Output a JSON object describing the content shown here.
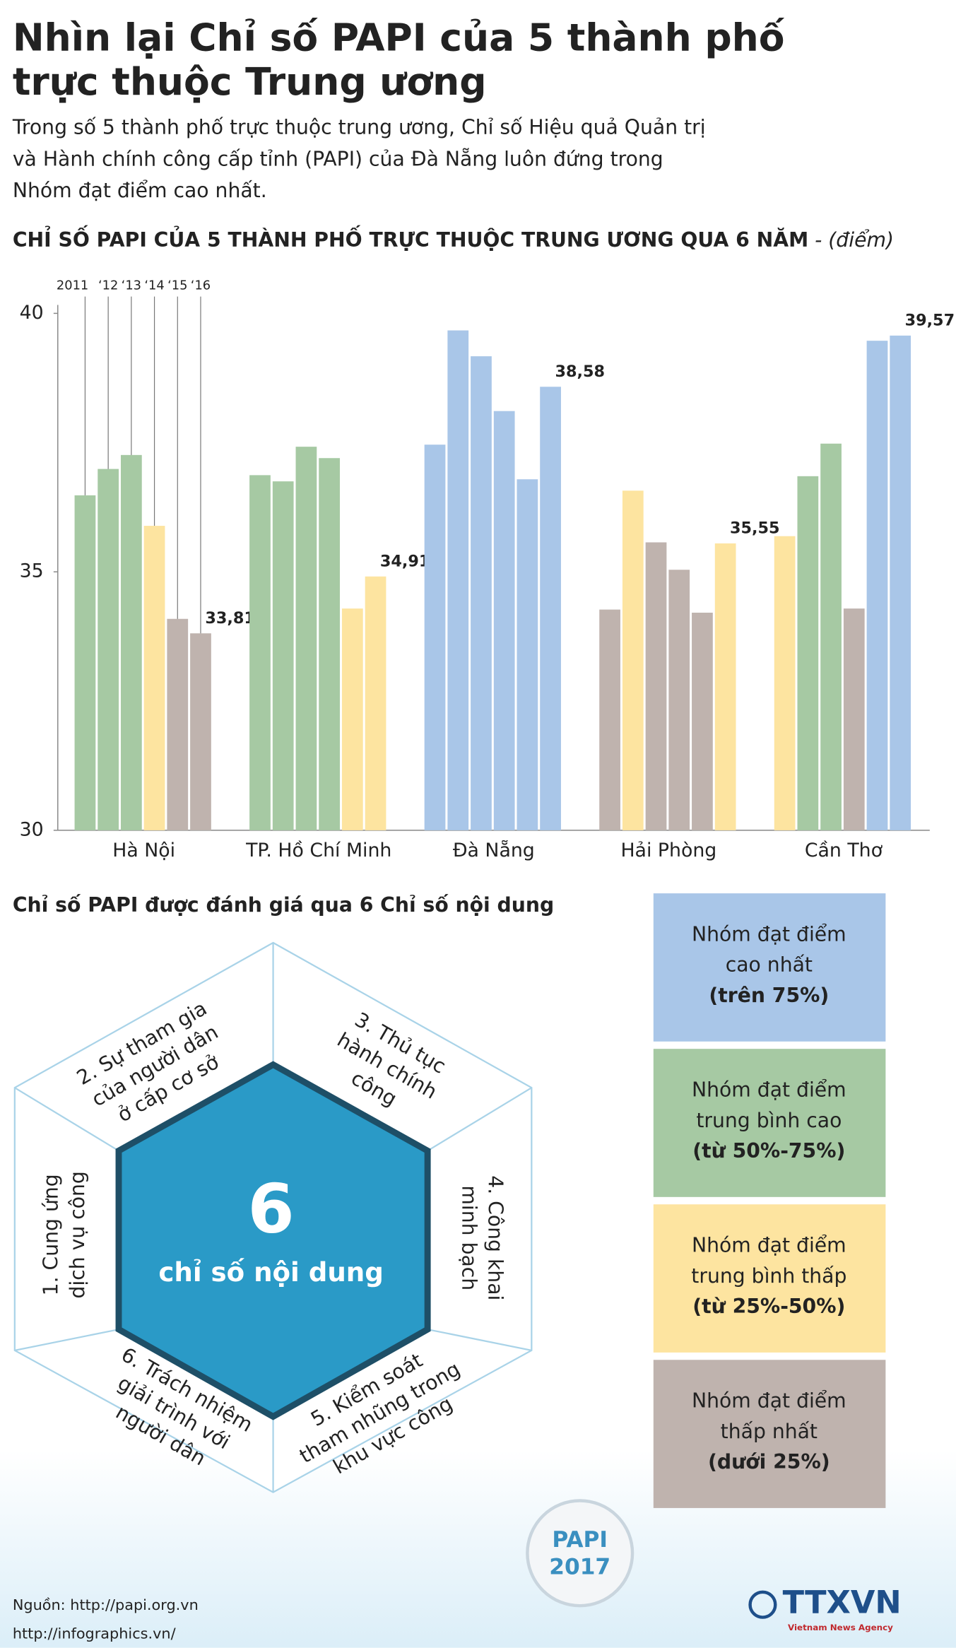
{
  "header": {
    "title": [
      "Nhìn lại Chỉ số PAPI của 5 thành phố",
      "trực thuộc Trung ương"
    ],
    "intro": [
      "Trong số 5 thành phố trực thuộc trung ương, Chỉ số Hiệu quả Quản trị",
      "và Hành chính công cấp tỉnh (PAPI) của Đà Nẵng luôn đứng trong",
      "Nhóm đạt điểm cao nhất."
    ]
  },
  "chart_data": {
    "type": "bar",
    "title": "CHỈ SỐ PAPI CỦA 5 THÀNH PHỐ TRỰC THUỘC TRUNG ƯƠNG QUA 6 NĂM",
    "unit": "- (điểm)",
    "categories": [
      "Hà Nội",
      "TP. Hồ Chí Minh",
      "Đà Nẵng",
      "Hải Phòng",
      "Cần Thơ"
    ],
    "series": [
      {
        "name": "2011",
        "values": [
          36.48,
          36.87,
          37.46,
          34.27,
          35.69
        ],
        "colors": [
          "#a6c9a3",
          "#a6c9a3",
          "#a9c6e8",
          "#bfb3ae",
          "#fde4a0"
        ]
      },
      {
        "name": "‘12",
        "values": [
          36.99,
          36.75,
          39.67,
          36.57,
          36.85
        ],
        "colors": [
          "#a6c9a3",
          "#a6c9a3",
          "#a9c6e8",
          "#fde4a0",
          "#a6c9a3"
        ]
      },
      {
        "name": "‘13",
        "values": [
          37.26,
          37.42,
          39.17,
          35.57,
          37.48
        ],
        "colors": [
          "#a6c9a3",
          "#a6c9a3",
          "#a9c6e8",
          "#bfb3ae",
          "#a6c9a3"
        ]
      },
      {
        "name": "‘14",
        "values": [
          35.89,
          37.2,
          38.11,
          35.04,
          34.29
        ],
        "colors": [
          "#fde4a0",
          "#a6c9a3",
          "#a9c6e8",
          "#bfb3ae",
          "#bfb3ae"
        ]
      },
      {
        "name": "‘15",
        "values": [
          34.09,
          34.29,
          36.79,
          34.21,
          39.47
        ],
        "colors": [
          "#bfb3ae",
          "#fde4a0",
          "#a9c6e8",
          "#bfb3ae",
          "#a9c6e8"
        ]
      },
      {
        "name": "‘16",
        "values": [
          33.81,
          34.91,
          38.58,
          35.55,
          39.57
        ],
        "value_labels": [
          "33,81",
          "34,91",
          "38,58",
          "35,55",
          "39,57"
        ],
        "colors": [
          "#bfb3ae",
          "#fde4a0",
          "#a9c6e8",
          "#fde4a0",
          "#a9c6e8"
        ]
      }
    ],
    "ylim": [
      30,
      40
    ],
    "yticks": [
      30,
      35,
      40
    ]
  },
  "indices": {
    "title": "Chỉ số PAPI được đánh giá qua 6 Chỉ số nội dung",
    "center_number": 6,
    "center_label": "chỉ số nội dung",
    "items": [
      [
        "1. Cung ứng",
        "dịch vụ công"
      ],
      [
        "2. Sự tham gia",
        "của người dân",
        "ở cấp cơ sở"
      ],
      [
        "3. Thủ tục",
        "hành chính",
        "công"
      ],
      [
        "4. Công khai",
        "minh bạch"
      ],
      [
        "5. Kiểm soát",
        "tham nhũng trong",
        "khu vực công"
      ],
      [
        "6. Trách nhiệm",
        "giải trình với",
        "người dân"
      ]
    ]
  },
  "groups": [
    {
      "lines": [
        "Nhóm đạt điểm",
        "cao nhất",
        "(trên 75%)"
      ],
      "color": "#a9c6e8"
    },
    {
      "lines": [
        "Nhóm đạt điểm",
        "trung bình cao",
        "(từ 50%-75%)"
      ],
      "color": "#a6c9a3"
    },
    {
      "lines": [
        "Nhóm đạt điểm",
        "trung bình thấp",
        "(từ 25%-50%)"
      ],
      "color": "#fde4a0"
    },
    {
      "lines": [
        "Nhóm đạt điểm",
        "thấp nhất",
        "(dưới 25%)"
      ],
      "color": "#bfb3ae"
    }
  ],
  "footer": {
    "badge": [
      "PAPI",
      "2017"
    ],
    "source": "Nguồn: http://papi.org.vn",
    "site": "http://infographics.vn/",
    "logo": "TTXVN",
    "logo_sub": "Vietnam News Agency"
  }
}
